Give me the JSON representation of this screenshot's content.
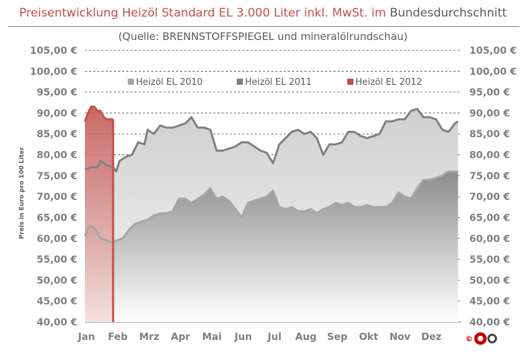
{
  "header": {
    "title_colored": "Preisentwicklung Heizöl Standard EL 3.000 Liter inkl. MwSt. im",
    "title_plain": "Bundesdurchschnitt",
    "subtitle": "(Quelle: BRENNSTOFFSPIEGEL  und mineralölrundschau)"
  },
  "colors": {
    "series_2010": "#a6a6a6",
    "series_2011": "#7f7f7f",
    "series_2012": "#c0504d",
    "title_accent": "#c0504d",
    "logo_red": "#c00000"
  },
  "logo": {
    "icon": "copyright-cozo-logo"
  },
  "chart_data": {
    "type": "area",
    "title": "Preisentwicklung Heizöl Standard EL 3.000 Liter inkl. MwSt. im Bundesdurchschnitt",
    "subtitle": "(Quelle: BRENNSTOFFSPIEGEL  und mineralölrundschau)",
    "xlabel": "",
    "ylabel": "Preis in Euro pro 100 Liter",
    "ylim": [
      40,
      105
    ],
    "yticks": [
      "105,00 €",
      "100,00 €",
      "95,00 €",
      "90,00 €",
      "85,00 €",
      "80,00 €",
      "75,00 €",
      "70,00 €",
      "65,00 €",
      "60,00 €",
      "55,00 €",
      "50,00 €",
      "45,00 €",
      "40,00 €"
    ],
    "months": [
      "Jan",
      "Feb",
      "Mrz",
      "Apr",
      "Mai",
      "Jun",
      "Jul",
      "Aug",
      "Sep",
      "Okt",
      "Nov",
      "Dez"
    ],
    "grid": "horizontal dashed",
    "legend_position": "top",
    "series": [
      {
        "name": "Heizöl EL 2010",
        "x": [
          0,
          0.1,
          0.2,
          0.3,
          0.5,
          0.7,
          0.9,
          1.0,
          1.2,
          1.4,
          1.6,
          1.8,
          2.0,
          2.2,
          2.4,
          2.6,
          2.8,
          3.0,
          3.2,
          3.4,
          3.6,
          3.8,
          4.0,
          4.2,
          4.4,
          4.6,
          4.8,
          5.0,
          5.2,
          5.4,
          5.6,
          5.8,
          6.0,
          6.2,
          6.4,
          6.6,
          6.8,
          7.0,
          7.2,
          7.4,
          7.6,
          7.8,
          8.0,
          8.2,
          8.4,
          8.6,
          8.8,
          9.0,
          9.2,
          9.4,
          9.6,
          9.8,
          10.0,
          10.2,
          10.4,
          10.6,
          10.8,
          11.0,
          11.2,
          11.4,
          11.6,
          11.9
        ],
        "values": [
          60.5,
          62.5,
          63,
          62.5,
          60,
          59.5,
          59,
          59.5,
          60,
          62,
          63.5,
          64,
          64.5,
          65.5,
          66,
          66,
          66.5,
          69.5,
          69.5,
          68.5,
          69.5,
          70.5,
          72,
          69.5,
          70,
          69,
          67,
          65,
          68.5,
          69,
          69.5,
          70,
          71.5,
          67.5,
          67,
          67.5,
          66.5,
          66.5,
          67,
          66,
          67,
          67.5,
          68.5,
          68,
          68.5,
          67.5,
          67.5,
          68,
          67.5,
          67.5,
          67.5,
          68.5,
          71,
          70,
          69.5,
          72,
          74,
          74,
          74.5,
          75,
          76,
          76
        ]
      },
      {
        "name": "Heizöl EL 2011",
        "x": [
          0,
          0.2,
          0.4,
          0.5,
          0.7,
          0.9,
          1.0,
          1.1,
          1.3,
          1.5,
          1.7,
          1.9,
          2.0,
          2.2,
          2.4,
          2.6,
          2.8,
          3.0,
          3.2,
          3.4,
          3.6,
          3.8,
          4.0,
          4.2,
          4.4,
          4.6,
          4.8,
          5.0,
          5.2,
          5.4,
          5.6,
          5.8,
          6.0,
          6.2,
          6.4,
          6.6,
          6.8,
          7.0,
          7.2,
          7.4,
          7.6,
          7.8,
          8.0,
          8.2,
          8.4,
          8.6,
          8.8,
          9.0,
          9.2,
          9.4,
          9.6,
          9.8,
          10.0,
          10.2,
          10.4,
          10.6,
          10.8,
          11.0,
          11.2,
          11.4,
          11.6,
          11.8,
          11.9
        ],
        "values": [
          76.5,
          77,
          77,
          78.5,
          77.5,
          77,
          76,
          78.5,
          79.5,
          80,
          83,
          82.5,
          86,
          85,
          87,
          86.5,
          86.5,
          87,
          87.5,
          89,
          86.5,
          86.5,
          86,
          81,
          81,
          81.5,
          82,
          83,
          83,
          82,
          81,
          80.5,
          78,
          82.5,
          84,
          85.5,
          86,
          85,
          85.5,
          84,
          80,
          82.5,
          82.5,
          83,
          85.5,
          85.5,
          84.5,
          84,
          84.5,
          85,
          88,
          88,
          88.5,
          88.5,
          90.5,
          91,
          89,
          89,
          88.5,
          86,
          85.5,
          87.5,
          88
        ]
      },
      {
        "name": "Heizöl EL 2012",
        "x": [
          0,
          0.1,
          0.2,
          0.3,
          0.4,
          0.5,
          0.6,
          0.7,
          0.8,
          0.9
        ],
        "values": [
          88,
          90,
          91.5,
          91.5,
          90.5,
          90.5,
          89,
          88.5,
          88.5,
          88.5
        ]
      }
    ]
  }
}
